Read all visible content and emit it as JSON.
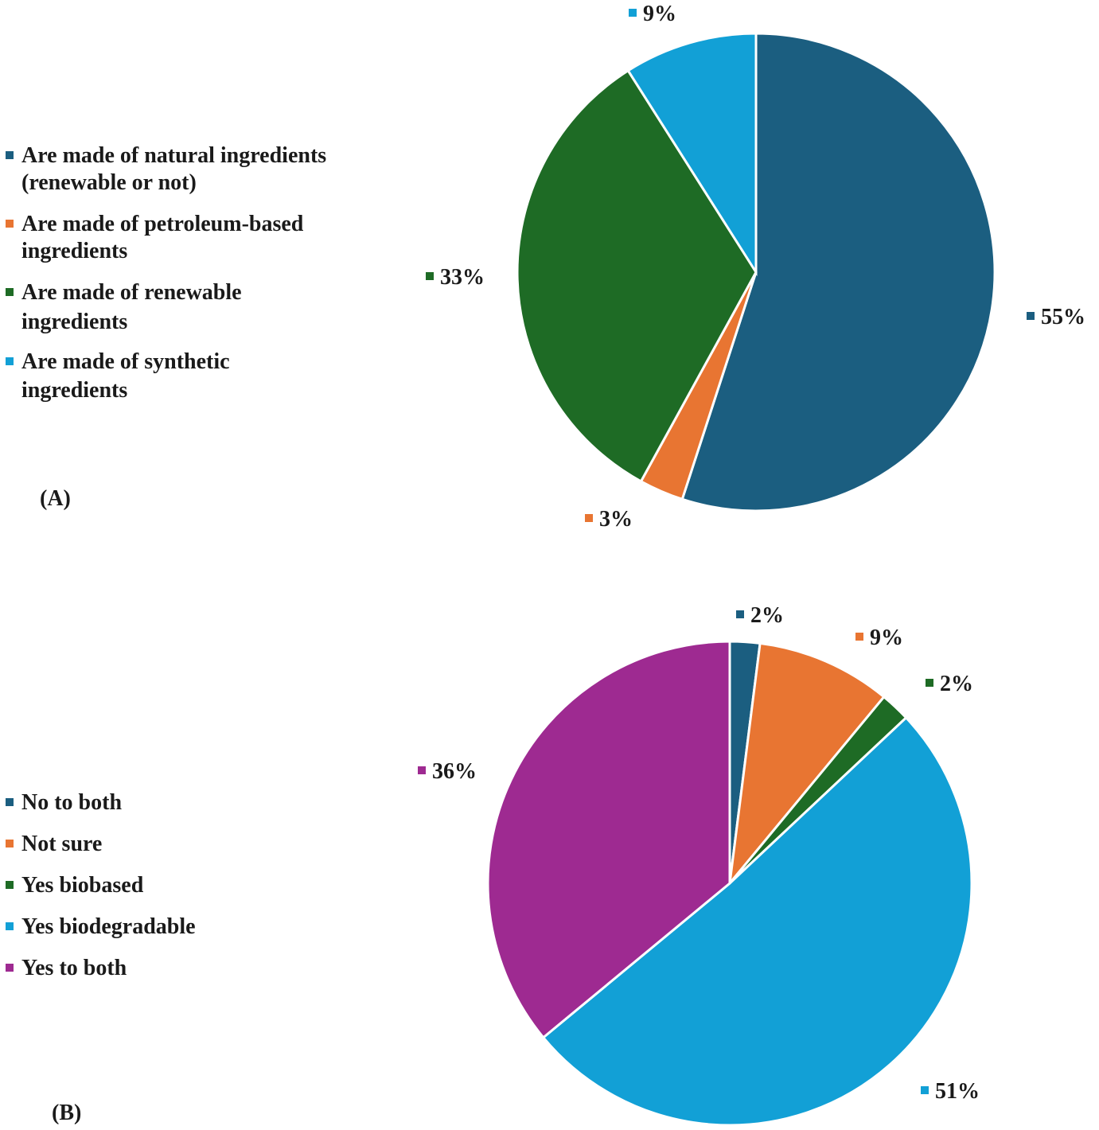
{
  "chart_data": [
    {
      "type": "pie",
      "panel_label": "(A)",
      "start": "top, clockwise",
      "legend_position": "left",
      "slices": [
        {
          "label": "Are made of natural ingredients (renewable or not)",
          "legend_lines": [
            "Are made of natural ingredients",
            "(renewable or not)"
          ],
          "value": 55,
          "data_label": "55%",
          "color": "#1b5e80"
        },
        {
          "label": "Are made of petroleum-based ingredients",
          "legend_lines": [
            "Are made of petroleum-based",
            "ingredients"
          ],
          "value": 3,
          "data_label": "3%",
          "color": "#e87532"
        },
        {
          "label": "Are made of renewable ingredients",
          "legend_lines": [
            "Are made of renewable",
            "ingredients"
          ],
          "value": 33,
          "data_label": "33%",
          "color": "#1e6b25"
        },
        {
          "label": "Are made of synthetic ingredients",
          "legend_lines": [
            "Are made of synthetic",
            "ingredients"
          ],
          "value": 9,
          "data_label": "9%",
          "color": "#12a0d6"
        }
      ]
    },
    {
      "type": "pie",
      "panel_label": "(B)",
      "start": "top, clockwise",
      "legend_position": "left",
      "slices": [
        {
          "label": "No to both",
          "legend_lines": [
            "No to both"
          ],
          "value": 2,
          "data_label": "2%",
          "color": "#1b5e80"
        },
        {
          "label": "Not sure",
          "legend_lines": [
            "Not sure"
          ],
          "value": 9,
          "data_label": "9%",
          "color": "#e87532"
        },
        {
          "label": "Yes biobased",
          "legend_lines": [
            "Yes biobased"
          ],
          "value": 2,
          "data_label": "2%",
          "color": "#1e6b25"
        },
        {
          "label": "Yes biodegradable",
          "legend_lines": [
            "Yes biodegradable"
          ],
          "value": 51,
          "data_label": "51%",
          "color": "#12a0d6"
        },
        {
          "label": "Yes to both",
          "legend_lines": [
            "Yes to both"
          ],
          "value": 36,
          "data_label": "36%",
          "color": "#9e2a91"
        }
      ]
    }
  ]
}
